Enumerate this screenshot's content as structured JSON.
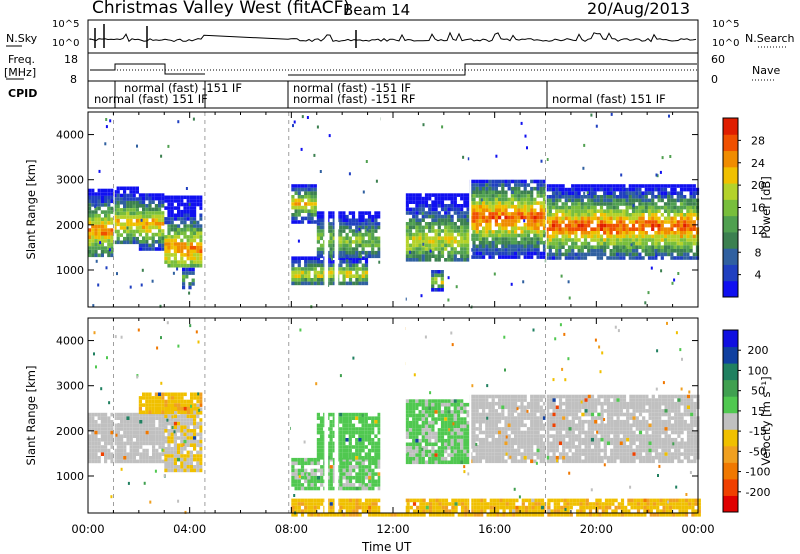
{
  "header": {
    "title": "Christmas Valley West (fitACF)",
    "beam": "Beam 14",
    "date": "20/Aug/2013"
  },
  "panels": {
    "nsky_label": "N.Sky",
    "nsky_ticks": [
      "10^5",
      "10^0"
    ],
    "nsearch_label": "N.Search",
    "nsearch_ticks": [
      "10^5",
      "10^0"
    ],
    "freq_label": "Freq.",
    "freq_unit": "[MHz]",
    "freq_ticks": [
      "18",
      "8"
    ],
    "nave_label": "Nave",
    "nave_ticks": [
      "60",
      "0"
    ],
    "cpid_label": "CPID",
    "cpid_segments": [
      {
        "text": "normal (fast) 151 IF",
        "row": 2
      },
      {
        "text": "normal (fast) -151 IF",
        "row": 1
      },
      {
        "text": "normal (fast) -151 IF",
        "row": 1
      },
      {
        "text": "normal (fast) -151 RF",
        "row": 2
      },
      {
        "text": "normal (fast) 151 IF",
        "row": 2
      }
    ]
  },
  "chart_data": [
    {
      "type": "heatmap",
      "ylabel": "Slant Range [km]",
      "yticks": [
        "4000",
        "3000",
        "2000",
        "1000"
      ],
      "ylim": [
        180,
        4500
      ],
      "xlim": [
        0,
        24
      ],
      "colorbar": {
        "label": "Power [dB]",
        "ticks": [
          "28",
          "24",
          "20",
          "16",
          "12",
          "8",
          "4"
        ],
        "range": [
          0,
          32
        ],
        "colors": [
          "#1010f0",
          "#2040c0",
          "#3060a0",
          "#3c8050",
          "#50a050",
          "#78be3c",
          "#b4d22a",
          "#f0c000",
          "#f08c00",
          "#f05000",
          "#e01e00"
        ]
      },
      "echo_bands": [
        {
          "x": [
            0.0,
            1.0
          ],
          "y": [
            1300,
            2800
          ],
          "peak": 1900,
          "level": 26
        },
        {
          "x": [
            1.0,
            2.0
          ],
          "y": [
            1600,
            2850
          ],
          "peak": 2100,
          "level": 24
        },
        {
          "x": [
            2.0,
            3.0
          ],
          "y": [
            1500,
            2700
          ],
          "peak": 2050,
          "level": 24
        },
        {
          "x": [
            3.0,
            4.5
          ],
          "y": [
            1100,
            2650
          ],
          "peak": 1500,
          "level": 26
        },
        {
          "x": [
            3.7,
            4.2
          ],
          "y": [
            650,
            1050
          ],
          "peak": 850,
          "level": 18
        },
        {
          "x": [
            8.0,
            9.0
          ],
          "y": [
            2100,
            2900
          ],
          "peak": 2500,
          "level": 22
        },
        {
          "x": [
            8.0,
            11.0
          ],
          "y": [
            700,
            1300
          ],
          "peak": 950,
          "level": 22
        },
        {
          "x": [
            9.0,
            11.5
          ],
          "y": [
            1300,
            2300
          ],
          "peak": 1700,
          "level": 18
        },
        {
          "x": [
            12.5,
            15.0
          ],
          "y": [
            1200,
            2700
          ],
          "peak": 1700,
          "level": 20
        },
        {
          "x": [
            13.5,
            14.0
          ],
          "y": [
            600,
            1000
          ],
          "peak": 800,
          "level": 22
        },
        {
          "x": [
            15.0,
            18.0
          ],
          "y": [
            1300,
            3000
          ],
          "peak": 2200,
          "level": 28
        },
        {
          "x": [
            18.0,
            24.0
          ],
          "y": [
            1300,
            2900
          ],
          "peak": 2000,
          "level": 28
        }
      ]
    },
    {
      "type": "heatmap",
      "ylabel": "Slant Range [km]",
      "yticks": [
        "4000",
        "3000",
        "2000",
        "1000"
      ],
      "ylim": [
        180,
        4500
      ],
      "xlim": [
        0,
        24
      ],
      "xlabel": "Time UT",
      "xticks": [
        "00:00",
        "04:00",
        "08:00",
        "12:00",
        "16:00",
        "20:00",
        "00:00"
      ],
      "colorbar": {
        "label": "Velocity [m s^-1]",
        "ticks": [
          "200",
          "100",
          "50",
          "15",
          "-15",
          "-50",
          "-100",
          "-200"
        ],
        "range": [
          -250,
          250
        ],
        "colors": [
          "#e00000",
          "#f04000",
          "#f07800",
          "#f0a020",
          "#f0c000",
          "#c0c0c0",
          "#50c850",
          "#40a050",
          "#208060",
          "#1040a0",
          "#1010e0"
        ]
      },
      "echo_bands": [
        {
          "x": [
            0.0,
            3.0
          ],
          "y": [
            1300,
            2400
          ],
          "vel": 0
        },
        {
          "x": [
            3.0,
            4.5
          ],
          "y": [
            1100,
            2600
          ],
          "vel": -20
        },
        {
          "x": [
            2.0,
            4.5
          ],
          "y": [
            2400,
            2850
          ],
          "vel": -60
        },
        {
          "x": [
            8.0,
            11.5
          ],
          "y": [
            700,
            1400
          ],
          "vel": 30
        },
        {
          "x": [
            9.0,
            11.5
          ],
          "y": [
            1400,
            2400
          ],
          "vel": 40
        },
        {
          "x": [
            12.5,
            15.0
          ],
          "y": [
            1300,
            2700
          ],
          "vel": 30
        },
        {
          "x": [
            15.0,
            24.0
          ],
          "y": [
            1300,
            2800
          ],
          "vel": 0
        },
        {
          "x": [
            8.0,
            24.0
          ],
          "y": [
            180,
            500
          ],
          "vel": -60
        }
      ]
    }
  ]
}
